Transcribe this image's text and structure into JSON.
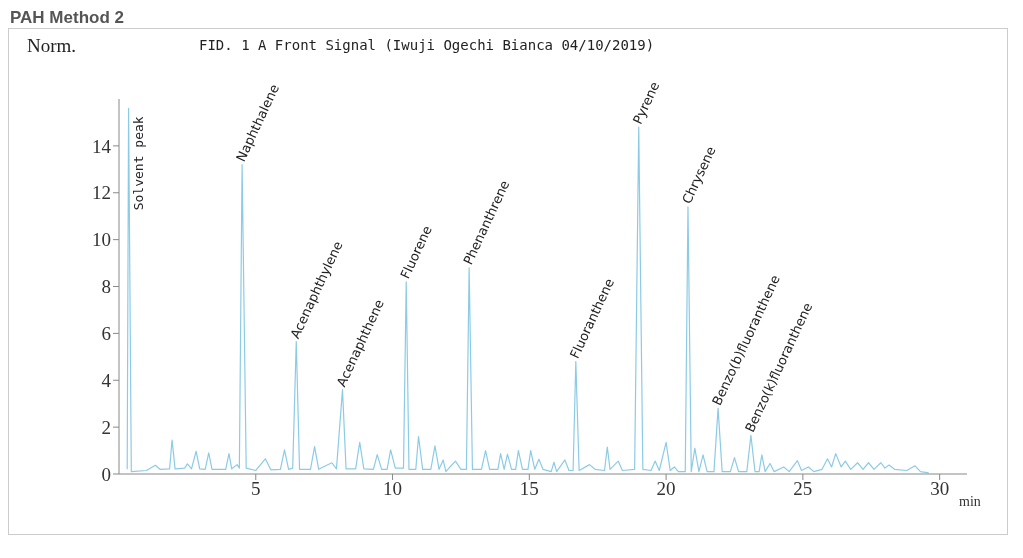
{
  "chart_data": {
    "type": "line",
    "title": "PAH Method 2",
    "subtitle": "FID. 1 A Front Signal (Iwuji Ogechi Bianca 04/10/2019)",
    "ylabel": "Norm.",
    "xlabel": "min",
    "x": [
      0.3,
      0.35,
      0.45,
      1.0,
      1.33,
      1.5,
      1.85,
      1.94,
      2.05,
      2.4,
      2.5,
      2.65,
      2.82,
      2.95,
      3.15,
      3.28,
      3.4,
      3.9,
      4.02,
      4.12,
      4.32,
      4.4,
      4.5,
      4.65,
      5.0,
      5.35,
      5.55,
      5.9,
      6.05,
      6.2,
      6.35,
      6.48,
      6.6,
      7.0,
      7.15,
      7.3,
      7.78,
      7.95,
      8.17,
      8.3,
      8.65,
      8.8,
      8.95,
      9.3,
      9.44,
      9.6,
      9.8,
      9.93,
      10.1,
      10.4,
      10.5,
      10.6,
      10.85,
      10.95,
      11.1,
      11.4,
      11.55,
      11.7,
      11.85,
      11.95,
      12.1,
      12.3,
      12.5,
      12.7,
      12.8,
      12.92,
      13.25,
      13.4,
      13.55,
      13.85,
      13.95,
      14.08,
      14.2,
      14.35,
      14.5,
      14.6,
      14.75,
      14.95,
      15.05,
      15.2,
      15.35,
      15.5,
      15.8,
      15.9,
      16.0,
      16.3,
      16.45,
      16.6,
      16.7,
      16.82,
      17.2,
      17.4,
      17.75,
      17.85,
      17.95,
      18.25,
      18.4,
      18.85,
      19.0,
      19.15,
      19.45,
      19.6,
      19.75,
      20.0,
      20.15,
      20.3,
      20.45,
      20.7,
      20.8,
      20.92,
      21.05,
      21.2,
      21.35,
      21.5,
      21.75,
      21.9,
      22.05,
      22.35,
      22.5,
      22.65,
      22.95,
      23.1,
      23.25,
      23.4,
      23.5,
      23.62,
      23.8,
      23.95,
      24.3,
      24.5,
      24.8,
      24.95,
      25.2,
      25.4,
      25.7,
      25.9,
      26.05,
      26.2,
      26.4,
      26.55,
      26.75,
      27.0,
      27.2,
      27.4,
      27.6,
      27.85,
      28.0,
      28.15,
      28.35,
      28.8,
      29.1,
      29.3,
      29.6
    ],
    "series": [
      {
        "color": "#8ccbe6",
        "values": [
          0.2,
          15.6,
          0.1,
          0.15,
          0.37,
          0.2,
          0.22,
          1.45,
          0.22,
          0.25,
          0.43,
          0.22,
          0.97,
          0.22,
          0.2,
          0.9,
          0.2,
          0.2,
          0.87,
          0.22,
          0.4,
          0.25,
          13.2,
          0.25,
          0.15,
          0.65,
          0.18,
          0.2,
          1.03,
          0.2,
          0.25,
          5.65,
          0.2,
          0.2,
          1.17,
          0.2,
          0.48,
          0.22,
          3.6,
          0.22,
          0.22,
          1.35,
          0.22,
          0.2,
          0.83,
          0.2,
          0.2,
          1.03,
          0.25,
          0.25,
          8.2,
          0.2,
          0.2,
          1.6,
          0.2,
          0.2,
          1.2,
          0.2,
          0.6,
          0.1,
          0.3,
          0.55,
          0.2,
          0.2,
          8.8,
          0.2,
          0.2,
          1.0,
          0.2,
          0.2,
          0.87,
          0.2,
          0.85,
          0.2,
          0.2,
          1.0,
          0.2,
          0.2,
          1.0,
          0.2,
          0.63,
          0.2,
          0.1,
          0.5,
          0.1,
          0.6,
          0.15,
          0.15,
          4.8,
          0.15,
          0.4,
          0.2,
          0.15,
          1.15,
          0.2,
          0.55,
          0.15,
          0.2,
          14.8,
          0.2,
          0.15,
          0.55,
          0.15,
          1.35,
          0.15,
          0.3,
          0.1,
          0.1,
          11.4,
          0.1,
          1.1,
          0.1,
          0.82,
          0.1,
          0.1,
          2.8,
          0.1,
          0.1,
          0.7,
          0.1,
          0.1,
          1.65,
          0.1,
          0.1,
          0.82,
          0.1,
          0.45,
          0.1,
          0.3,
          0.1,
          0.57,
          0.15,
          0.3,
          0.1,
          0.2,
          0.65,
          0.3,
          0.87,
          0.3,
          0.55,
          0.2,
          0.48,
          0.2,
          0.48,
          0.2,
          0.48,
          0.25,
          0.38,
          0.2,
          0.15,
          0.35,
          0.1,
          0.05
        ]
      }
    ],
    "xlim": [
      0,
      31
    ],
    "xticks": [
      5,
      10,
      15,
      20,
      25,
      30
    ],
    "ylim": [
      0,
      16
    ],
    "yticks": [
      0,
      2,
      4,
      6,
      8,
      10,
      12,
      14
    ],
    "marker": "none",
    "line_style": "solid",
    "annotations": [
      {
        "text": "Solvent peak",
        "x": 0.35,
        "y": 15.6
      },
      {
        "text": "Naphthalene",
        "x": 4.5,
        "y": 13.2
      },
      {
        "text": "Acenaphthylene",
        "x": 6.48,
        "y": 5.65
      },
      {
        "text": "Acenaphthene",
        "x": 8.17,
        "y": 3.6
      },
      {
        "text": "Fluorene",
        "x": 10.5,
        "y": 8.2
      },
      {
        "text": "Phenanthrene",
        "x": 12.8,
        "y": 8.8
      },
      {
        "text": "Fluoranthene",
        "x": 16.7,
        "y": 4.8
      },
      {
        "text": "Pyrene",
        "x": 19.0,
        "y": 14.8
      },
      {
        "text": "Chrysene",
        "x": 20.8,
        "y": 11.4
      },
      {
        "text": "Benzo(b)fluoranthene",
        "x": 21.9,
        "y": 2.8
      },
      {
        "text": "Benzo(k)fluoranthene",
        "x": 23.1,
        "y": 1.65
      }
    ]
  }
}
